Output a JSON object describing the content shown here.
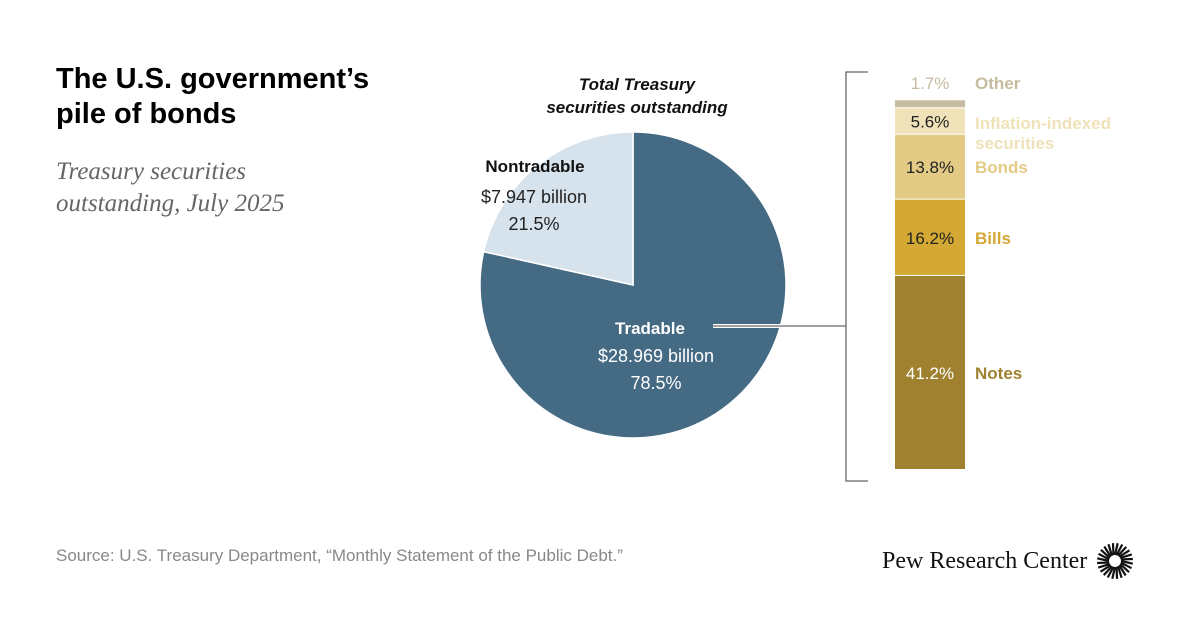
{
  "title": "The U.S. government’s pile of bonds",
  "subtitle": "Treasury securities outstanding, July 2025",
  "source": "Source: U.S. Treasury Department, “Monthly Statement of the Public Debt.”",
  "logo_text": "Pew Research Center",
  "chart_data": [
    {
      "type": "pie",
      "title": "Total Treasury securities outstanding",
      "title_lines": [
        "Total Treasury",
        "securities outstanding"
      ],
      "slices": [
        {
          "name": "Tradable",
          "amount_label": "$28.969 billion",
          "value": 78.5,
          "value_label": "78.5%",
          "color": "#446a84"
        },
        {
          "name": "Nontradable",
          "amount_label": "$7.947 billion",
          "value": 21.5,
          "value_label": "21.5%",
          "color": "#d6e3ec"
        }
      ]
    },
    {
      "type": "bar",
      "stacked": true,
      "segments": [
        {
          "name": "Notes",
          "value": 41.2,
          "value_label": "41.2%",
          "color": "#a0812f",
          "label_color": "#fff",
          "name_color": "#a0812f"
        },
        {
          "name": "Bills",
          "value": 16.2,
          "value_label": "16.2%",
          "color": "#d3a833",
          "label_color": "#222",
          "name_color": "#d3a833"
        },
        {
          "name": "Bonds",
          "value": 13.8,
          "value_label": "13.8%",
          "color": "#e3cb85",
          "label_color": "#222",
          "name_color": "#e3cb85"
        },
        {
          "name": "Inflation-indexed securities",
          "name_lines": [
            "Inflation-indexed",
            "securities"
          ],
          "value": 5.6,
          "value_label": "5.6%",
          "color": "#f0e2b8",
          "label_color": "#222",
          "name_color": "#f0e2b8"
        },
        {
          "name": "Other",
          "value": 1.7,
          "value_label": "1.7%",
          "color": "#c6bc9f",
          "label_color": "#c6bc9f",
          "name_color": "#c6bc9f"
        }
      ]
    }
  ]
}
